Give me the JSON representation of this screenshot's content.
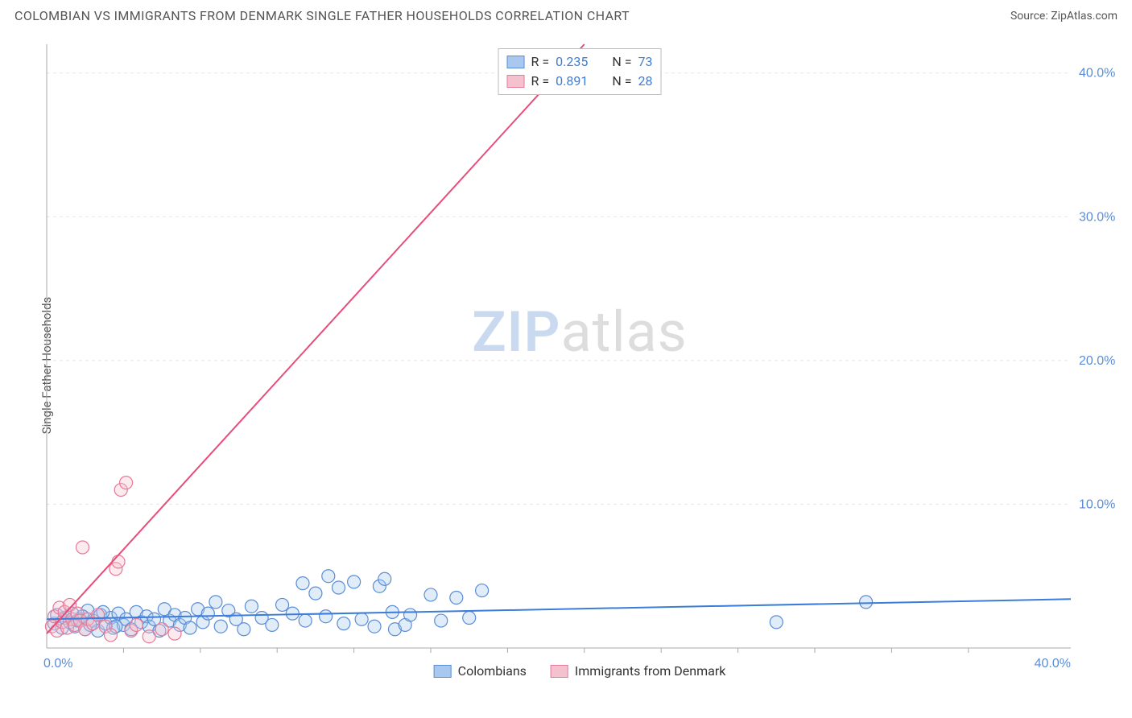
{
  "header": {
    "title": "COLOMBIAN VS IMMIGRANTS FROM DENMARK SINGLE FATHER HOUSEHOLDS CORRELATION CHART",
    "source_label": "Source: ",
    "source_name": "ZipAtlas.com"
  },
  "chart": {
    "type": "scatter",
    "y_axis_label": "Single Father Households",
    "xlim": [
      0,
      40
    ],
    "ylim": [
      0,
      42
    ],
    "x_ticks": [
      0,
      40
    ],
    "x_tick_labels": [
      "0.0%",
      "40.0%"
    ],
    "y_ticks": [
      10,
      20,
      30,
      40
    ],
    "y_tick_labels": [
      "10.0%",
      "20.0%",
      "30.0%",
      "40.0%"
    ],
    "x_minor_ticks": [
      3,
      6,
      9,
      12,
      15,
      18,
      21,
      24,
      27,
      30,
      33,
      36
    ],
    "background_color": "#ffffff",
    "grid_color": "#e7e7e7",
    "axis_color": "#aaaaaa",
    "tick_label_color": "#5b8dd6",
    "marker_radius": 8,
    "marker_stroke_width": 1.2,
    "marker_fill_opacity": 0.35,
    "line_width": 2,
    "watermark": {
      "zip": "ZIP",
      "atlas": "atlas"
    },
    "series": [
      {
        "name": "Colombians",
        "color_fill": "#a9c8ef",
        "color_stroke": "#5b8dd6",
        "line_color": "#3b7dd8",
        "r_value": "0.235",
        "n_value": "73",
        "trend": {
          "x1": 0,
          "y1": 2.0,
          "x2": 40,
          "y2": 3.4
        },
        "points": [
          [
            0.3,
            1.7
          ],
          [
            0.4,
            2.3
          ],
          [
            0.6,
            1.4
          ],
          [
            0.7,
            2.1
          ],
          [
            0.9,
            1.8
          ],
          [
            1.0,
            2.4
          ],
          [
            1.1,
            1.5
          ],
          [
            1.3,
            2.0
          ],
          [
            1.5,
            1.3
          ],
          [
            1.6,
            2.6
          ],
          [
            1.8,
            1.9
          ],
          [
            2.0,
            1.2
          ],
          [
            2.1,
            2.3
          ],
          [
            2.3,
            1.7
          ],
          [
            2.5,
            2.1
          ],
          [
            2.6,
            1.4
          ],
          [
            2.8,
            2.4
          ],
          [
            3.0,
            1.6
          ],
          [
            3.1,
            2.0
          ],
          [
            3.3,
            1.3
          ],
          [
            3.5,
            2.5
          ],
          [
            3.7,
            1.8
          ],
          [
            3.9,
            2.2
          ],
          [
            4.0,
            1.5
          ],
          [
            4.2,
            2.0
          ],
          [
            4.4,
            1.2
          ],
          [
            4.6,
            2.7
          ],
          [
            4.8,
            1.9
          ],
          [
            5.0,
            2.3
          ],
          [
            5.2,
            1.6
          ],
          [
            5.4,
            2.1
          ],
          [
            5.6,
            1.4
          ],
          [
            5.9,
            2.7
          ],
          [
            6.1,
            1.8
          ],
          [
            6.3,
            2.4
          ],
          [
            6.6,
            3.2
          ],
          [
            6.8,
            1.5
          ],
          [
            7.1,
            2.6
          ],
          [
            7.4,
            2.0
          ],
          [
            7.7,
            1.3
          ],
          [
            8.0,
            2.9
          ],
          [
            8.4,
            2.1
          ],
          [
            8.8,
            1.6
          ],
          [
            9.2,
            3.0
          ],
          [
            9.6,
            2.4
          ],
          [
            10.0,
            4.5
          ],
          [
            10.1,
            1.9
          ],
          [
            10.5,
            3.8
          ],
          [
            10.9,
            2.2
          ],
          [
            11.0,
            5.0
          ],
          [
            11.4,
            4.2
          ],
          [
            11.6,
            1.7
          ],
          [
            12.0,
            4.6
          ],
          [
            12.3,
            2.0
          ],
          [
            12.8,
            1.5
          ],
          [
            13.0,
            4.3
          ],
          [
            13.2,
            4.8
          ],
          [
            13.5,
            2.5
          ],
          [
            13.6,
            1.3
          ],
          [
            14.0,
            1.6
          ],
          [
            14.2,
            2.3
          ],
          [
            15.0,
            3.7
          ],
          [
            15.4,
            1.9
          ],
          [
            16.0,
            3.5
          ],
          [
            16.5,
            2.1
          ],
          [
            17.0,
            4.0
          ],
          [
            28.5,
            1.8
          ],
          [
            32.0,
            3.2
          ],
          [
            1.2,
            1.9
          ],
          [
            1.4,
            2.2
          ],
          [
            1.7,
            1.6
          ],
          [
            2.2,
            2.5
          ],
          [
            2.7,
            1.5
          ]
        ]
      },
      {
        "name": "Immigrants from Denmark",
        "color_fill": "#f4c2cf",
        "color_stroke": "#e67a9a",
        "line_color": "#e84d7a",
        "r_value": "0.891",
        "n_value": "28",
        "trend": {
          "x1": 0,
          "y1": 1.0,
          "x2": 21,
          "y2": 42
        },
        "points": [
          [
            0.2,
            1.5
          ],
          [
            0.3,
            2.2
          ],
          [
            0.4,
            1.2
          ],
          [
            0.5,
            2.8
          ],
          [
            0.6,
            1.8
          ],
          [
            0.7,
            2.5
          ],
          [
            0.8,
            1.4
          ],
          [
            0.9,
            3.0
          ],
          [
            1.0,
            2.0
          ],
          [
            1.1,
            1.6
          ],
          [
            1.2,
            2.4
          ],
          [
            1.3,
            1.9
          ],
          [
            1.5,
            1.3
          ],
          [
            1.6,
            2.0
          ],
          [
            1.8,
            1.7
          ],
          [
            2.0,
            2.3
          ],
          [
            2.3,
            1.5
          ],
          [
            2.5,
            0.9
          ],
          [
            2.7,
            5.5
          ],
          [
            2.8,
            6.0
          ],
          [
            2.9,
            11.0
          ],
          [
            3.1,
            11.5
          ],
          [
            3.3,
            1.2
          ],
          [
            3.5,
            1.6
          ],
          [
            4.0,
            0.8
          ],
          [
            4.5,
            1.3
          ],
          [
            5.0,
            1.0
          ],
          [
            1.4,
            7.0
          ]
        ]
      }
    ],
    "legend_top": {
      "r_prefix": "R = ",
      "n_prefix": "N = "
    },
    "legend_bottom_labels": [
      "Colombians",
      "Immigrants from Denmark"
    ]
  }
}
